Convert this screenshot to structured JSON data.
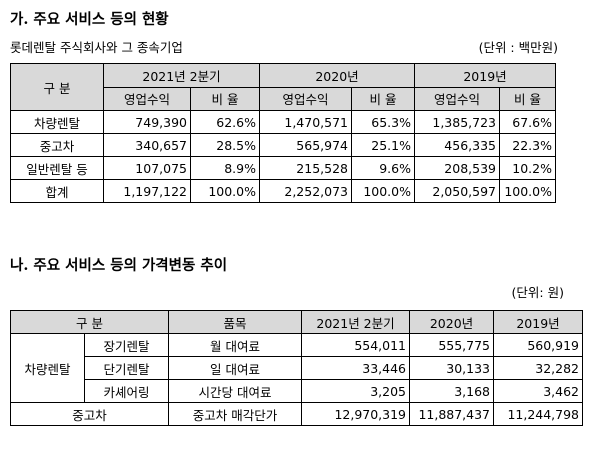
{
  "section_a": {
    "title": "가. 주요 서비스 등의 현황",
    "subtitle": "롯데렌탈 주식회사와 그 종속기업",
    "unit": "(단위 : 백만원)",
    "header": {
      "category": "구 분",
      "periods": [
        "2021년 2분기",
        "2020년",
        "2019년"
      ],
      "revenue": "영업수익",
      "ratio": "비 율"
    },
    "rows": [
      {
        "name": "차량렌탈",
        "values": [
          "749,390",
          "62.6%",
          "1,470,571",
          "65.3%",
          "1,385,723",
          "67.6%"
        ]
      },
      {
        "name": "중고차",
        "values": [
          "340,657",
          "28.5%",
          "565,974",
          "25.1%",
          "456,335",
          "22.3%"
        ]
      },
      {
        "name": "일반렌탈 등",
        "values": [
          "107,075",
          "8.9%",
          "215,528",
          "9.6%",
          "208,539",
          "10.2%"
        ]
      },
      {
        "name": "합계",
        "values": [
          "1,197,122",
          "100.0%",
          "2,252,073",
          "100.0%",
          "2,050,597",
          "100.0%"
        ]
      }
    ]
  },
  "section_b": {
    "title": "나. 주요 서비스 등의 가격변동 추이",
    "unit": "(단위: 원)",
    "header": {
      "category": "구 분",
      "item": "품목",
      "periods": [
        "2021년 2분기",
        "2020년",
        "2019년"
      ]
    },
    "group": "차량렌탈",
    "rows": [
      {
        "sub": "장기렌탈",
        "item": "월 대여료",
        "values": [
          "554,011",
          "555,775",
          "560,919"
        ]
      },
      {
        "sub": "단기렌탈",
        "item": "일 대여료",
        "values": [
          "33,446",
          "30,133",
          "32,282"
        ]
      },
      {
        "sub": "카셰어링",
        "item": "시간당 대여료",
        "values": [
          "3,205",
          "3,168",
          "3,462"
        ]
      }
    ],
    "used": {
      "name": "중고차",
      "item": "중고차 매각단가",
      "values": [
        "12,970,319",
        "11,887,437",
        "11,244,798"
      ]
    }
  }
}
